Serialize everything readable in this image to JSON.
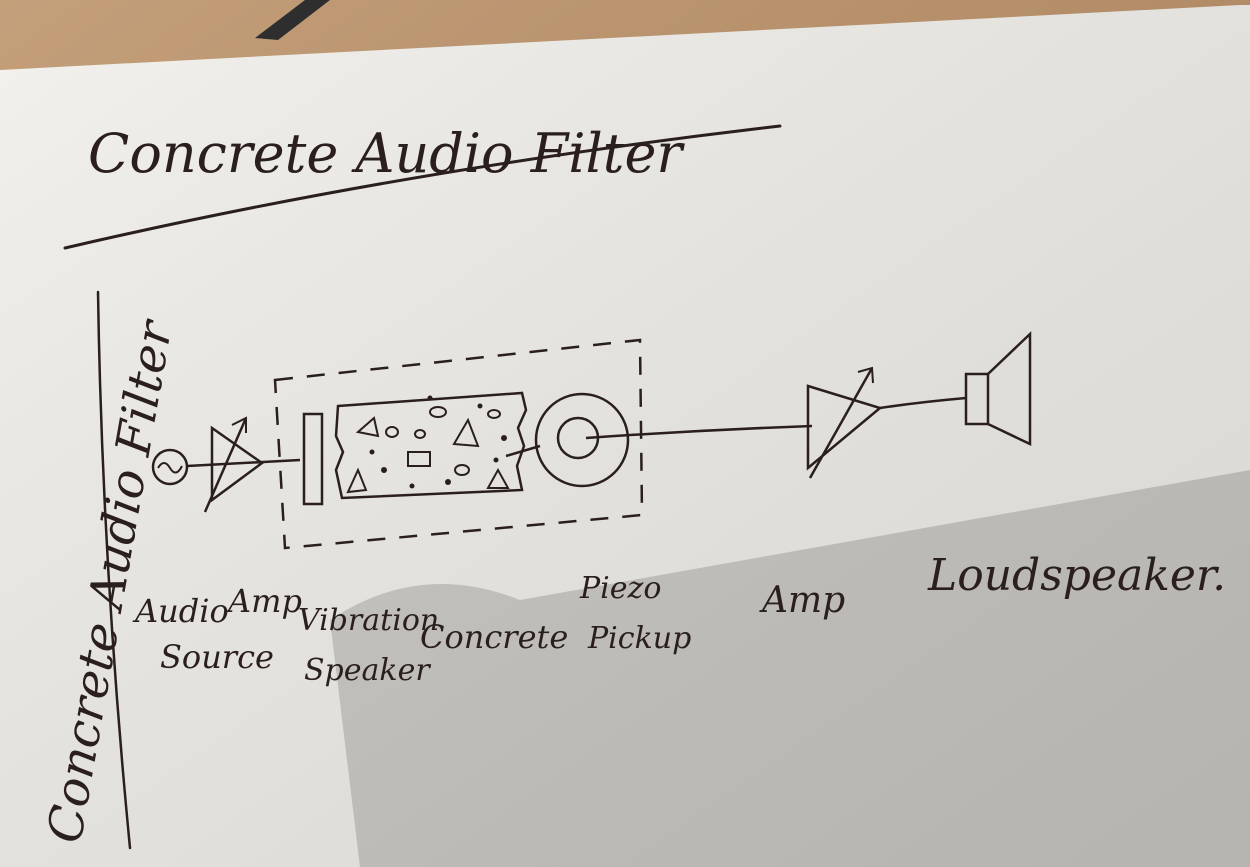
{
  "page": {
    "title": "Concrete Audio Filter",
    "side_title": "Concrete Audio Filter"
  },
  "labels": {
    "audio_source_line1": "Audio",
    "audio_source_line2": "Source",
    "amp1": "Amp",
    "vibration_speaker_line1": "Vibration",
    "vibration_speaker_line2": "Speaker",
    "concrete": "Concrete",
    "piezo_pickup_line1": "Piezo",
    "piezo_pickup_line2": "Pickup",
    "amp2": "Amp",
    "loudspeaker": "Loudspeaker."
  },
  "colors": {
    "paper": "#f1efea",
    "ink": "#2a1f1c",
    "backdrop": "#b98e63"
  },
  "icons": {
    "source": "sine-source-icon",
    "amp": "amplifier-triangle-icon",
    "variable_amp": "variable-amplifier-icon",
    "speaker": "loudspeaker-icon",
    "pickup": "piezo-disc-icon"
  }
}
